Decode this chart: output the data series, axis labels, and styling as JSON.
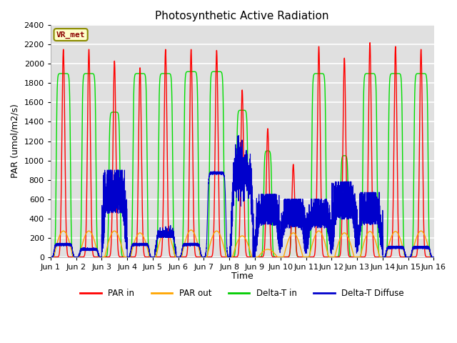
{
  "title": "Photosynthetic Active Radiation",
  "ylabel": "PAR (umol/m2/s)",
  "xlabel": "Time",
  "xlim": [
    0,
    15
  ],
  "ylim": [
    0,
    2400
  ],
  "yticks": [
    0,
    200,
    400,
    600,
    800,
    1000,
    1200,
    1400,
    1600,
    1800,
    2000,
    2200,
    2400
  ],
  "xtick_labels": [
    "Jun 1",
    "Jun 2",
    "Jun 3",
    "Jun 4",
    "Jun 5",
    "Jun 6",
    "Jun 7",
    "Jun 8",
    "Jun 9",
    "Jun 10",
    "Jun 11",
    "Jun 12",
    "Jun 13",
    "Jun 14",
    "Jun 15",
    "Jun 16"
  ],
  "legend_labels": [
    "PAR in",
    "PAR out",
    "Delta-T in",
    "Delta-T Diffuse"
  ],
  "legend_colors": [
    "#ff0000",
    "#ffa500",
    "#00cc00",
    "#0000cc"
  ],
  "dataset_label": "VR_met",
  "plot_bg_color": "#e0e0e0",
  "fig_bg_color": "#ffffff",
  "grid_color": "#ffffff",
  "colors": {
    "PAR_in": "#ff0000",
    "PAR_out": "#ffa500",
    "Delta_T_in": "#00dd00",
    "Delta_T_Diffuse": "#0000cc"
  },
  "par_in_peaks": [
    2150,
    2150,
    2030,
    1960,
    2150,
    2150,
    2140,
    1730,
    1330,
    960,
    2180,
    2060,
    2220,
    2180,
    2150
  ],
  "par_out_peaks": [
    270,
    270,
    270,
    250,
    270,
    280,
    270,
    220,
    80,
    250,
    270,
    250,
    265,
    265,
    270
  ],
  "delta_t_in_peaks": [
    1900,
    1900,
    1500,
    1900,
    1900,
    1920,
    1920,
    1520,
    1100,
    600,
    1900,
    1050,
    1900,
    1900,
    1900
  ],
  "delta_t_diff_peaks": [
    130,
    80,
    900,
    130,
    200,
    130,
    870,
    870,
    650,
    600,
    600,
    780,
    670,
    100,
    100
  ]
}
